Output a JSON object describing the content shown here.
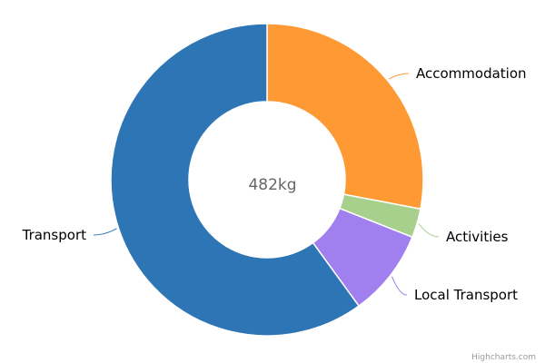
{
  "chart_data": {
    "type": "pie",
    "donut": true,
    "center_label": "482kg",
    "slices": [
      {
        "name": "Accommodation",
        "value": 28.0,
        "color": "#ff9933"
      },
      {
        "name": "Activities",
        "value": 3.0,
        "color": "#a8d08d"
      },
      {
        "name": "Local Transport",
        "value": 9.0,
        "color": "#a07fef"
      },
      {
        "name": "Transport",
        "value": 60.0,
        "color": "#2e75b6"
      }
    ],
    "credit": "Highcharts.com"
  }
}
